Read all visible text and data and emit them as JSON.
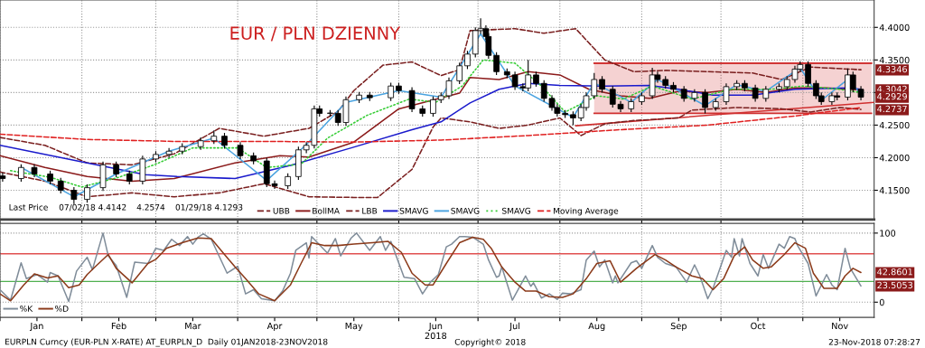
{
  "chart_data": [
    {
      "type": "candlestick",
      "title": "EUR / PLN DZIENNY",
      "x": [
        "2018-01-02",
        "2018-01-09",
        "2018-01-14",
        "2018-01-20",
        "2018-01-24",
        "2018-01-29",
        "2018-02-03",
        "2018-02-09",
        "2018-02-14",
        "2018-02-19",
        "2018-02-24",
        "2018-03-01",
        "2018-03-06",
        "2018-03-11",
        "2018-03-18",
        "2018-03-23",
        "2018-03-27",
        "2018-04-02",
        "2018-04-07",
        "2018-04-12",
        "2018-04-15",
        "2018-04-20",
        "2018-04-24",
        "2018-04-27",
        "2018-04-30",
        "2018-05-02",
        "2018-05-06",
        "2018-05-09",
        "2018-05-12",
        "2018-05-17",
        "2018-05-21",
        "2018-05-29",
        "2018-06-01",
        "2018-06-06",
        "2018-06-10",
        "2018-06-14",
        "2018-06-17",
        "2018-06-20",
        "2018-06-24",
        "2018-06-27",
        "2018-06-30",
        "2018-07-02",
        "2018-07-04",
        "2018-07-05",
        "2018-07-08",
        "2018-07-12",
        "2018-07-15",
        "2018-07-18",
        "2018-07-20",
        "2018-07-23",
        "2018-07-26",
        "2018-07-29",
        "2018-07-31",
        "2018-08-03",
        "2018-08-06",
        "2018-08-09",
        "2018-08-11",
        "2018-08-14",
        "2018-08-17",
        "2018-08-21",
        "2018-08-24",
        "2018-08-28",
        "2018-09-01",
        "2018-09-05",
        "2018-09-07",
        "2018-09-10",
        "2018-09-13",
        "2018-09-17",
        "2018-09-21",
        "2018-09-25",
        "2018-09-29",
        "2018-10-03",
        "2018-10-07",
        "2018-10-10",
        "2018-10-14",
        "2018-10-18",
        "2018-10-23",
        "2018-10-26",
        "2018-10-29",
        "2018-10-31",
        "2018-11-03",
        "2018-11-06",
        "2018-11-08",
        "2018-11-12",
        "2018-11-14",
        "2018-11-18",
        "2018-11-20",
        "2018-11-23"
      ],
      "ohlc": [
        [
          4.172,
          4.177,
          4.163,
          4.168
        ],
        [
          4.168,
          4.19,
          4.163,
          4.185
        ],
        [
          4.185,
          4.19,
          4.17,
          4.175
        ],
        [
          4.175,
          4.18,
          4.159,
          4.164
        ],
        [
          4.164,
          4.169,
          4.145,
          4.15
        ],
        [
          4.15,
          4.155,
          4.129,
          4.136
        ],
        [
          4.136,
          4.159,
          4.131,
          4.154
        ],
        [
          4.154,
          4.194,
          4.149,
          4.189
        ],
        [
          4.189,
          4.194,
          4.17,
          4.175
        ],
        [
          4.175,
          4.18,
          4.159,
          4.164
        ],
        [
          4.164,
          4.203,
          4.159,
          4.198
        ],
        [
          4.198,
          4.21,
          4.193,
          4.205
        ],
        [
          4.205,
          4.215,
          4.2,
          4.21
        ],
        [
          4.21,
          4.222,
          4.205,
          4.217
        ],
        [
          4.217,
          4.231,
          4.212,
          4.226
        ],
        [
          4.226,
          4.242,
          4.221,
          4.233
        ],
        [
          4.233,
          4.238,
          4.214,
          4.219
        ],
        [
          4.219,
          4.224,
          4.198,
          4.203
        ],
        [
          4.203,
          4.208,
          4.19,
          4.195
        ],
        [
          4.195,
          4.2,
          4.155,
          4.16
        ],
        [
          4.16,
          4.165,
          4.152,
          4.157
        ],
        [
          4.157,
          4.176,
          4.152,
          4.171
        ],
        [
          4.171,
          4.217,
          4.166,
          4.212
        ],
        [
          4.212,
          4.224,
          4.207,
          4.219
        ],
        [
          4.219,
          4.28,
          4.214,
          4.275
        ],
        [
          4.275,
          4.28,
          4.263,
          4.268
        ],
        [
          4.268,
          4.273,
          4.263,
          4.268
        ],
        [
          4.268,
          4.273,
          4.249,
          4.254
        ],
        [
          4.254,
          4.294,
          4.249,
          4.289
        ],
        [
          4.289,
          4.301,
          4.284,
          4.296
        ],
        [
          4.296,
          4.301,
          4.287,
          4.292
        ],
        [
          4.292,
          4.315,
          4.287,
          4.31
        ],
        [
          4.31,
          4.315,
          4.298,
          4.303
        ],
        [
          4.303,
          4.308,
          4.27,
          4.275
        ],
        [
          4.275,
          4.28,
          4.263,
          4.268
        ],
        [
          4.268,
          4.294,
          4.263,
          4.289
        ],
        [
          4.289,
          4.3,
          4.284,
          4.295
        ],
        [
          4.295,
          4.323,
          4.29,
          4.318
        ],
        [
          4.318,
          4.346,
          4.313,
          4.341
        ],
        [
          4.341,
          4.364,
          4.336,
          4.359
        ],
        [
          4.359,
          4.4,
          4.354,
          4.395
        ],
        [
          4.395,
          4.414,
          4.39,
          4.398
        ],
        [
          4.398,
          4.403,
          4.381,
          4.386
        ],
        [
          4.386,
          4.391,
          4.352,
          4.357
        ],
        [
          4.357,
          4.362,
          4.327,
          4.332
        ],
        [
          4.332,
          4.337,
          4.322,
          4.327
        ],
        [
          4.327,
          4.332,
          4.304,
          4.309
        ],
        [
          4.309,
          4.314,
          4.302,
          4.307
        ],
        [
          4.307,
          4.35,
          4.302,
          4.327
        ],
        [
          4.327,
          4.332,
          4.309,
          4.314
        ],
        [
          4.314,
          4.319,
          4.286,
          4.291
        ],
        [
          4.291,
          4.296,
          4.272,
          4.277
        ],
        [
          4.277,
          4.282,
          4.263,
          4.268
        ],
        [
          4.268,
          4.273,
          4.261,
          4.266
        ],
        [
          4.266,
          4.271,
          4.25,
          4.261
        ],
        [
          4.261,
          4.282,
          4.256,
          4.277
        ],
        [
          4.277,
          4.3,
          4.272,
          4.295
        ],
        [
          4.295,
          4.33,
          4.29,
          4.32
        ],
        [
          4.32,
          4.325,
          4.3,
          4.305
        ],
        [
          4.305,
          4.31,
          4.277,
          4.282
        ],
        [
          4.282,
          4.287,
          4.27,
          4.275
        ],
        [
          4.275,
          4.291,
          4.27,
          4.286
        ],
        [
          4.286,
          4.3,
          4.281,
          4.295
        ],
        [
          4.295,
          4.338,
          4.29,
          4.327
        ],
        [
          4.327,
          4.332,
          4.315,
          4.32
        ],
        [
          4.32,
          4.325,
          4.306,
          4.311
        ],
        [
          4.311,
          4.316,
          4.3,
          4.305
        ],
        [
          4.305,
          4.31,
          4.286,
          4.291
        ],
        [
          4.291,
          4.305,
          4.286,
          4.3
        ],
        [
          4.3,
          4.305,
          4.268,
          4.277
        ],
        [
          4.277,
          4.291,
          4.272,
          4.286
        ],
        [
          4.286,
          4.314,
          4.281,
          4.309
        ],
        [
          4.309,
          4.319,
          4.304,
          4.314
        ],
        [
          4.314,
          4.319,
          4.302,
          4.307
        ],
        [
          4.307,
          4.312,
          4.286,
          4.291
        ],
        [
          4.291,
          4.31,
          4.286,
          4.305
        ],
        [
          4.305,
          4.314,
          4.3,
          4.309
        ],
        [
          4.309,
          4.325,
          4.304,
          4.32
        ],
        [
          4.32,
          4.341,
          4.315,
          4.336
        ],
        [
          4.336,
          4.348,
          4.331,
          4.343
        ],
        [
          4.343,
          4.348,
          4.309,
          4.314
        ],
        [
          4.314,
          4.319,
          4.29,
          4.295
        ],
        [
          4.295,
          4.3,
          4.281,
          4.286
        ],
        [
          4.286,
          4.3,
          4.281,
          4.295
        ],
        [
          4.295,
          4.3,
          4.288,
          4.293
        ],
        [
          4.293,
          4.337,
          4.288,
          4.327
        ],
        [
          4.327,
          4.332,
          4.3,
          4.305
        ],
        [
          4.305,
          4.31,
          4.288,
          4.293
        ]
      ],
      "series": [
        {
          "type": "line",
          "color": "#d03030",
          "x": [
            "2018-08-14",
            "2018-11-27"
          ],
          "values": [
            4.345,
            4.345
          ],
          "lower": [
            4.268,
            4.268
          ],
          "upper": [
            4.345,
            4.345
          ]
        },
        {
          "type": "line",
          "color": "#d03030",
          "x": [
            "2018-08-07",
            "2018-11-28"
          ],
          "values": [
            4.249,
            4.285
          ]
        },
        {
          "type": "line",
          "name": "UBB",
          "color": "#7a1f1f",
          "line_style": "dashed",
          "x": [
            "2018-01-01",
            "2018-01-18",
            "2018-02-03",
            "2018-02-20",
            "2018-03-08",
            "2018-03-25",
            "2018-04-11",
            "2018-04-28",
            "2018-05-09",
            "2018-05-15",
            "2018-05-26",
            "2018-06-06",
            "2018-06-17",
            "2018-06-24",
            "2018-06-28",
            "2018-07-15",
            "2018-07-26",
            "2018-08-07",
            "2018-08-18",
            "2018-08-29",
            "2018-09-10",
            "2018-09-26",
            "2018-10-13",
            "2018-10-24",
            "2018-11-04",
            "2018-11-23"
          ],
          "values": [
            4.231,
            4.219,
            4.192,
            4.189,
            4.206,
            4.245,
            4.233,
            4.245,
            4.271,
            4.303,
            4.342,
            4.347,
            4.326,
            4.335,
            4.395,
            4.398,
            4.391,
            4.398,
            4.35,
            4.332,
            4.334,
            4.332,
            4.33,
            4.32,
            4.339,
            4.335
          ]
        },
        {
          "type": "line",
          "name": "BollMA",
          "color": "#8b1a1a",
          "line_style": "solid",
          "x": [
            "2018-01-01",
            "2018-01-18",
            "2018-02-03",
            "2018-02-20",
            "2018-03-08",
            "2018-03-31",
            "2018-04-17",
            "2018-04-28",
            "2018-05-15",
            "2018-06-01",
            "2018-06-24",
            "2018-06-28",
            "2018-07-09",
            "2018-07-20",
            "2018-08-01",
            "2018-08-12",
            "2018-08-24",
            "2018-09-04",
            "2018-09-15",
            "2018-09-26",
            "2018-10-07",
            "2018-10-18",
            "2018-10-29",
            "2018-11-10",
            "2018-11-23"
          ],
          "values": [
            4.203,
            4.185,
            4.171,
            4.164,
            4.168,
            4.192,
            4.203,
            4.201,
            4.224,
            4.275,
            4.299,
            4.323,
            4.32,
            4.332,
            4.327,
            4.305,
            4.295,
            4.291,
            4.302,
            4.3,
            4.305,
            4.3,
            4.307,
            4.307,
            4.304
          ]
        },
        {
          "type": "line",
          "name": "LBB",
          "color": "#7a1f1f",
          "line_style": "dashed",
          "x": [
            "2018-01-01",
            "2018-01-18",
            "2018-02-03",
            "2018-02-20",
            "2018-03-08",
            "2018-03-25",
            "2018-04-11",
            "2018-04-28",
            "2018-05-15",
            "2018-05-24",
            "2018-06-06",
            "2018-06-14",
            "2018-06-17",
            "2018-06-28",
            "2018-07-09",
            "2018-07-20",
            "2018-08-01",
            "2018-08-09",
            "2018-08-18",
            "2018-08-29",
            "2018-09-15",
            "2018-09-20",
            "2018-10-07",
            "2018-10-24",
            "2018-11-04",
            "2018-11-15",
            "2018-11-23"
          ],
          "values": [
            4.178,
            4.164,
            4.14,
            4.146,
            4.14,
            4.146,
            4.16,
            4.14,
            4.139,
            4.139,
            4.182,
            4.247,
            4.261,
            4.255,
            4.245,
            4.25,
            4.261,
            4.234,
            4.252,
            4.257,
            4.261,
            4.273,
            4.277,
            4.275,
            4.27,
            4.277,
            4.274
          ]
        },
        {
          "type": "line",
          "name": "SMAVG",
          "color": "#1a1acc",
          "line_style": "solid",
          "x": [
            "2018-01-01",
            "2018-02-03",
            "2018-02-25",
            "2018-03-09",
            "2018-03-31",
            "2018-04-21",
            "2018-05-14",
            "2018-06-06",
            "2018-06-17",
            "2018-06-28",
            "2018-07-09",
            "2018-07-20",
            "2018-08-01",
            "2018-08-18",
            "2018-09-04",
            "2018-09-15",
            "2018-09-28",
            "2018-10-13",
            "2018-10-29",
            "2018-11-18",
            "2018-11-23"
          ],
          "values": [
            4.219,
            4.192,
            4.174,
            4.171,
            4.168,
            4.188,
            4.215,
            4.243,
            4.255,
            4.284,
            4.305,
            4.314,
            4.311,
            4.31,
            4.311,
            4.305,
            4.296,
            4.296,
            4.305,
            4.307,
            4.305
          ]
        },
        {
          "type": "line",
          "name": "SMAVG",
          "color": "#4aa3e0",
          "line_style": "solid",
          "x": [
            "2018-01-09",
            "2018-01-29",
            "2018-02-14",
            "2018-03-06",
            "2018-03-23",
            "2018-04-12",
            "2018-04-27",
            "2018-05-12",
            "2018-06-01",
            "2018-06-17",
            "2018-07-02",
            "2018-07-15",
            "2018-08-06",
            "2018-08-14",
            "2018-08-28",
            "2018-09-07",
            "2018-09-25",
            "2018-10-07",
            "2018-10-18",
            "2018-10-31",
            "2018-11-08",
            "2018-11-18",
            "2018-11-23"
          ],
          "values": [
            4.185,
            4.14,
            4.175,
            4.21,
            4.23,
            4.165,
            4.22,
            4.285,
            4.303,
            4.293,
            4.39,
            4.31,
            4.262,
            4.315,
            4.285,
            4.32,
            4.28,
            4.312,
            4.302,
            4.338,
            4.288,
            4.32,
            4.298
          ]
        },
        {
          "type": "line",
          "name": "SMAVG",
          "color": "#33cc33",
          "line_style": "dotted",
          "x": [
            "2018-01-05",
            "2018-01-20",
            "2018-02-01",
            "2018-02-15",
            "2018-03-01",
            "2018-03-15",
            "2018-04-01",
            "2018-04-12",
            "2018-04-25",
            "2018-05-05",
            "2018-05-20",
            "2018-06-05",
            "2018-06-15",
            "2018-06-25",
            "2018-07-03",
            "2018-07-15",
            "2018-07-25",
            "2018-08-03",
            "2018-08-15",
            "2018-08-25",
            "2018-09-05",
            "2018-09-20",
            "2018-10-05",
            "2018-10-20",
            "2018-11-01",
            "2018-11-15",
            "2018-11-23"
          ],
          "values": [
            4.18,
            4.17,
            4.155,
            4.17,
            4.19,
            4.215,
            4.215,
            4.185,
            4.19,
            4.23,
            4.265,
            4.29,
            4.285,
            4.31,
            4.35,
            4.345,
            4.31,
            4.27,
            4.295,
            4.29,
            4.31,
            4.29,
            4.305,
            4.305,
            4.31,
            4.305,
            4.3
          ]
        },
        {
          "type": "line",
          "name": "Moving Average",
          "color": "#e02020",
          "line_style": "dashed",
          "x": [
            "2018-01-01",
            "2018-02-03",
            "2018-03-08",
            "2018-04-11",
            "2018-05-15",
            "2018-06-17",
            "2018-07-20",
            "2018-08-24",
            "2018-09-26",
            "2018-10-29",
            "2018-11-23"
          ],
          "values": [
            4.236,
            4.228,
            4.225,
            4.225,
            4.224,
            4.227,
            4.234,
            4.243,
            4.25,
            4.264,
            4.277
          ]
        }
      ],
      "annotations": [
        "Last Price",
        "07/02/18 4.4142",
        "4.2574",
        "01/29/18 4.1293",
        {
          "text": "4.3346",
          "x": "2018-11-23",
          "y": 4.3346
        },
        {
          "text": "4.3042",
          "x": "2018-11-23",
          "y": 4.3042
        },
        {
          "text": "4.2929",
          "x": "2018-11-23",
          "y": 4.2929
        },
        {
          "text": "4.2737",
          "x": "2018-11-23",
          "y": 4.2737
        }
      ],
      "xlim": [
        "2018-01-01",
        "2018-11-28"
      ],
      "xticks": [
        {
          "value": "2018-01-01",
          "label": null
        },
        {
          "value": "2018-02-01",
          "label": null
        },
        {
          "value": "2018-03-01",
          "label": null
        },
        {
          "value": "2018-04-01",
          "label": null
        },
        {
          "value": "2018-05-01",
          "label": null
        },
        {
          "value": "2018-06-01",
          "label": null
        },
        {
          "value": "2018-07-01",
          "label": null
        },
        {
          "value": "2018-08-01",
          "label": null
        },
        {
          "value": "2018-09-01",
          "label": null
        },
        {
          "value": "2018-10-01",
          "label": null
        },
        {
          "value": "2018-11-01",
          "label": null
        }
      ],
      "ylim": [
        4.105,
        4.442
      ],
      "yticks": [
        {
          "value": 4.15,
          "label": "4.1500"
        },
        {
          "value": 4.2,
          "label": "4.2000"
        },
        {
          "value": 4.25,
          "label": "4.2500"
        },
        {
          "value": 4.3,
          "label": null
        },
        {
          "value": 4.35,
          "label": "4.3500"
        },
        {
          "value": 4.4,
          "label": "4.4000"
        }
      ],
      "tick_labels": "y",
      "grid": true,
      "legend": "bottom left",
      "marker": "none"
    },
    {
      "type": "line",
      "series": [
        {
          "name": "%K",
          "color": "#7f8c99",
          "x": [
            "2018-01-01",
            "2018-01-05",
            "2018-01-09",
            "2018-01-11",
            "2018-01-15",
            "2018-01-19",
            "2018-01-20",
            "2018-01-23",
            "2018-01-27",
            "2018-01-30",
            "2018-02-03",
            "2018-02-05",
            "2018-02-09",
            "2018-02-11",
            "2018-02-14",
            "2018-02-18",
            "2018-02-21",
            "2018-02-26",
            "2018-03-01",
            "2018-03-04",
            "2018-03-07",
            "2018-03-10",
            "2018-03-13",
            "2018-03-15",
            "2018-03-17",
            "2018-03-19",
            "2018-03-22",
            "2018-03-28",
            "2018-04-01",
            "2018-04-04",
            "2018-04-07",
            "2018-04-10",
            "2018-04-15",
            "2018-04-18",
            "2018-04-21",
            "2018-04-23",
            "2018-04-27",
            "2018-04-28",
            "2018-04-29",
            "2018-05-05",
            "2018-05-08",
            "2018-05-10",
            "2018-05-14",
            "2018-05-16",
            "2018-05-21",
            "2018-05-25",
            "2018-05-27",
            "2018-05-29",
            "2018-05-31",
            "2018-06-03",
            "2018-06-07",
            "2018-06-10",
            "2018-06-13",
            "2018-06-16",
            "2018-06-19",
            "2018-06-21",
            "2018-06-24",
            "2018-06-26",
            "2018-06-29",
            "2018-07-03",
            "2018-07-05",
            "2018-07-08",
            "2018-07-09",
            "2018-07-10",
            "2018-07-14",
            "2018-07-19",
            "2018-07-21",
            "2018-07-22",
            "2018-07-25",
            "2018-07-28",
            "2018-07-31",
            "2018-08-02",
            "2018-08-05",
            "2018-08-09",
            "2018-08-11",
            "2018-08-14",
            "2018-08-16",
            "2018-08-18",
            "2018-08-21",
            "2018-08-22",
            "2018-08-23",
            "2018-08-28",
            "2018-08-30",
            "2018-09-01",
            "2018-09-05",
            "2018-09-07",
            "2018-09-10",
            "2018-09-14",
            "2018-09-18",
            "2018-09-21",
            "2018-09-23",
            "2018-09-26",
            "2018-09-28",
            "2018-10-03",
            "2018-10-05",
            "2018-10-06",
            "2018-10-08",
            "2018-10-09",
            "2018-10-12",
            "2018-10-15",
            "2018-10-17",
            "2018-10-19",
            "2018-10-23",
            "2018-10-25",
            "2018-10-27",
            "2018-10-29",
            "2018-10-30",
            "2018-11-03",
            "2018-11-06",
            "2018-11-10",
            "2018-11-12",
            "2018-11-14",
            "2018-11-17",
            "2018-11-19",
            "2018-11-23"
          ],
          "values": [
            18,
            3,
            57,
            34,
            40,
            29,
            43,
            38,
            1,
            45,
            65,
            47,
            100,
            67,
            53,
            7,
            58,
            56,
            78,
            75,
            91,
            82,
            95,
            84,
            94,
            99,
            91,
            42,
            52,
            12,
            18,
            5,
            2,
            16,
            42,
            75,
            86,
            64,
            95,
            71,
            92,
            67,
            93,
            100,
            75,
            95,
            75,
            88,
            67,
            36,
            34,
            12,
            29,
            40,
            80,
            84,
            95,
            95,
            94,
            84,
            61,
            36,
            38,
            51,
            3,
            38,
            23,
            28,
            6,
            12,
            4,
            13,
            12,
            18,
            61,
            74,
            51,
            61,
            28,
            38,
            28,
            57,
            60,
            49,
            82,
            65,
            56,
            51,
            29,
            54,
            38,
            5,
            20,
            75,
            65,
            92,
            67,
            92,
            56,
            38,
            69,
            49,
            84,
            78,
            95,
            92,
            82,
            56,
            9,
            40,
            25,
            18,
            78,
            49,
            23.5
          ]
        },
        {
          "name": "%D",
          "color": "#8b3a1a",
          "x": [
            "2018-01-01",
            "2018-01-05",
            "2018-01-10",
            "2018-01-14",
            "2018-01-19",
            "2018-01-23",
            "2018-01-27",
            "2018-01-31",
            "2018-02-03",
            "2018-02-06",
            "2018-02-11",
            "2018-02-14",
            "2018-02-20",
            "2018-02-26",
            "2018-03-01",
            "2018-03-05",
            "2018-03-11",
            "2018-03-17",
            "2018-03-22",
            "2018-03-27",
            "2018-03-31",
            "2018-04-04",
            "2018-04-09",
            "2018-04-15",
            "2018-04-21",
            "2018-04-25",
            "2018-04-29",
            "2018-05-04",
            "2018-05-09",
            "2018-05-15",
            "2018-05-22",
            "2018-05-28",
            "2018-06-02",
            "2018-06-06",
            "2018-06-11",
            "2018-06-14",
            "2018-06-19",
            "2018-06-24",
            "2018-06-29",
            "2018-07-03",
            "2018-07-06",
            "2018-07-10",
            "2018-07-15",
            "2018-07-19",
            "2018-07-23",
            "2018-07-28",
            "2018-08-02",
            "2018-08-06",
            "2018-08-11",
            "2018-08-15",
            "2018-08-20",
            "2018-08-24",
            "2018-08-30",
            "2018-09-06",
            "2018-09-10",
            "2018-09-14",
            "2018-09-20",
            "2018-09-24",
            "2018-09-28",
            "2018-10-02",
            "2018-10-06",
            "2018-10-10",
            "2018-10-13",
            "2018-10-17",
            "2018-10-20",
            "2018-10-25",
            "2018-10-29",
            "2018-11-02",
            "2018-11-05",
            "2018-11-09",
            "2018-11-14",
            "2018-11-17",
            "2018-11-20",
            "2018-11-23"
          ],
          "values": [
            12,
            2,
            25,
            41,
            35,
            38,
            21,
            25,
            40,
            51,
            69,
            49,
            28,
            56,
            62,
            78,
            86,
            93,
            92,
            69,
            51,
            34,
            12,
            2,
            25,
            56,
            86,
            82,
            82,
            84,
            86,
            88,
            72,
            42,
            25,
            25,
            56,
            86,
            94,
            91,
            78,
            51,
            29,
            16,
            16,
            8,
            7,
            12,
            34,
            56,
            60,
            29,
            49,
            69,
            61,
            51,
            38,
            34,
            18,
            34,
            67,
            80,
            61,
            49,
            51,
            69,
            86,
            78,
            42,
            20,
            20,
            38,
            49,
            42.9
          ]
        }
      ],
      "annotations": [
        {
          "text": "42.8601",
          "x": "2018-11-23",
          "y": 42.8601
        },
        {
          "text": "23.5053",
          "x": "2018-11-23",
          "y": 23.5053
        },
        "EURPLN Curncy (EUR-PLN X-RATE) AT_EURPLN_D  Daily 01JAN2018-23NOV2018",
        "Copyright© 2018",
        "23-Nov-2018 07:28:27"
      ],
      "ref_lines": [
        {
          "axis": "y",
          "value": 70,
          "color": "#e05050"
        },
        {
          "axis": "y",
          "value": 30,
          "color": "#50b050"
        }
      ],
      "xlim": [
        "2018-01-01",
        "2018-11-28"
      ],
      "xticks": [
        {
          "value": "2018-01-01",
          "label": null
        },
        {
          "value": "2018-01-15",
          "label": "Jan"
        },
        {
          "value": "2018-02-01",
          "label": null
        },
        {
          "value": "2018-02-15",
          "label": "Feb"
        },
        {
          "value": "2018-03-01",
          "label": null
        },
        {
          "value": "2018-03-15",
          "label": "Mar"
        },
        {
          "value": "2018-04-01",
          "label": null
        },
        {
          "value": "2018-04-15",
          "label": "Apr"
        },
        {
          "value": "2018-05-01",
          "label": null
        },
        {
          "value": "2018-05-15",
          "label": "May"
        },
        {
          "value": "2018-06-01",
          "label": null
        },
        {
          "value": "2018-06-15",
          "label": "Jun\n2018"
        },
        {
          "value": "2018-07-01",
          "label": null
        },
        {
          "value": "2018-07-15",
          "label": "Jul"
        },
        {
          "value": "2018-08-01",
          "label": null
        },
        {
          "value": "2018-08-15",
          "label": "Aug"
        },
        {
          "value": "2018-09-01",
          "label": null
        },
        {
          "value": "2018-09-15",
          "label": "Sep"
        },
        {
          "value": "2018-10-01",
          "label": null
        },
        {
          "value": "2018-10-15",
          "label": "Oct"
        },
        {
          "value": "2018-11-01",
          "label": null
        },
        {
          "value": "2018-11-15",
          "label": "Nov"
        }
      ],
      "ylim": [
        -22,
        114
      ],
      "yticks": [
        0,
        100
      ],
      "grid": true,
      "legend": "bottom left",
      "marker": "none"
    }
  ]
}
